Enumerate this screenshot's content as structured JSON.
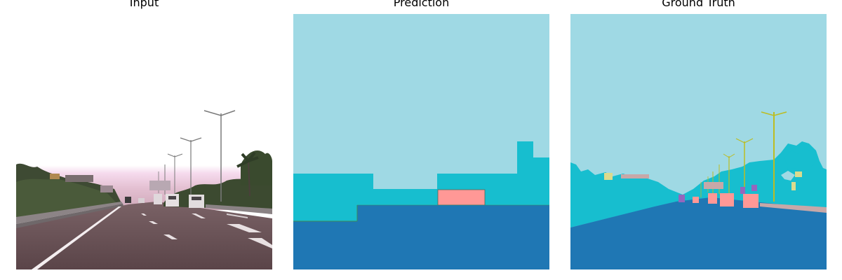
{
  "panels": [
    {
      "title": "Input"
    },
    {
      "title": "Prediction"
    },
    {
      "title": "Ground Truth"
    }
  ],
  "colors": {
    "sky": "#9fd9e4",
    "road": "#1f77b4",
    "vegetation": "#17becf",
    "vehicle": "#ff9896",
    "pole": "#bcbd22",
    "sidewalk": "#c7a8a8",
    "purple": "#9467bd",
    "yellow": "#dbdb8d"
  }
}
